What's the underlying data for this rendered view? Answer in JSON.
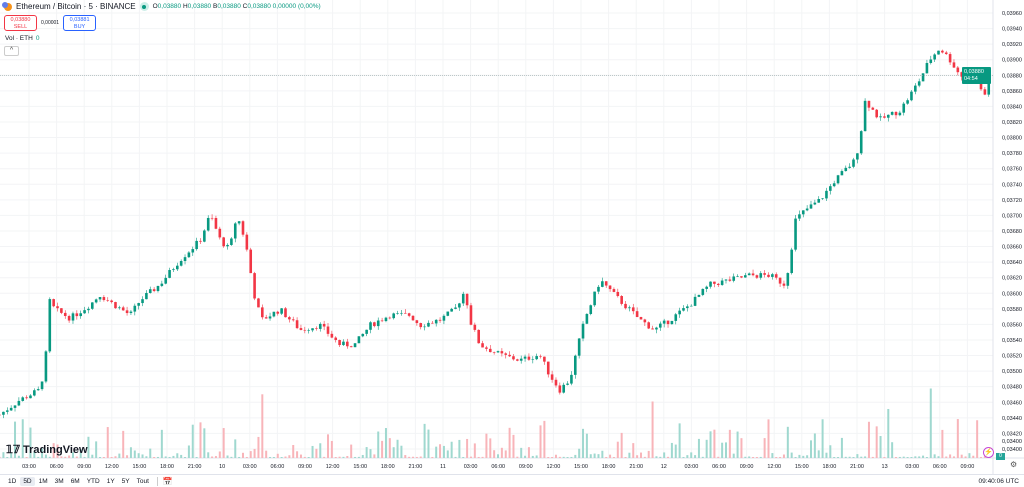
{
  "header": {
    "symbol": "Ethereum / Bitcoin · 5 · BINANCE",
    "ohlc": [
      {
        "k": "O",
        "v": "0,03880"
      },
      {
        "k": "H",
        "v": "0,03880"
      },
      {
        "k": "B",
        "v": "0,03880"
      },
      {
        "k": "C",
        "v": "0,03880"
      }
    ],
    "change": "0,00000 (0,00%)"
  },
  "trade": {
    "sell_price": "0,03880",
    "sell_label": "SELL",
    "spread": "0,00001",
    "buy_price": "0,03881",
    "buy_label": "BUY"
  },
  "volume_legend": {
    "label": "Vol · ETH",
    "value": "0"
  },
  "collapse_icon": "^",
  "logo": "TradingView",
  "current_price": {
    "value": "0,03880",
    "countdown": "04:54"
  },
  "volume_axis_label": "0,03400",
  "volume_badge": "0",
  "ranges": [
    "1D",
    "5D",
    "1M",
    "3M",
    "6M",
    "YTD",
    "1Y",
    "5Y",
    "Tout"
  ],
  "active_range": "5D",
  "clock": "09:40:06 UTC",
  "colors": {
    "up": "#089981",
    "down": "#f23645",
    "up_vol": "#9fd8cf",
    "down_vol": "#f8b4b9"
  },
  "chart_data": {
    "type": "candlestick",
    "title": "Ethereum / Bitcoin · 5 · BINANCE",
    "ylim": [
      0.0339,
      0.0397
    ],
    "y_ticks": [
      "0,03960",
      "0,03940",
      "0,03920",
      "0,03900",
      "0,03880",
      "0,03860",
      "0,03840",
      "0,03820",
      "0,03800",
      "0,03780",
      "0,03760",
      "0,03740",
      "0,03720",
      "0,03700",
      "0,03680",
      "0,03660",
      "0,03640",
      "0,03620",
      "0,03600",
      "0,03580",
      "0,03560",
      "0,03540",
      "0,03520",
      "0,03500",
      "0,03480",
      "0,03460",
      "0,03440",
      "0,03420",
      "0,03400"
    ],
    "x_ticks": [
      {
        "t": 3,
        "label": "03:00"
      },
      {
        "t": 6,
        "label": "06:00"
      },
      {
        "t": 9,
        "label": "09:00"
      },
      {
        "t": 12,
        "label": "12:00"
      },
      {
        "t": 15,
        "label": "15:00"
      },
      {
        "t": 18,
        "label": "18:00"
      },
      {
        "t": 21,
        "label": "21:00"
      },
      {
        "t": 24,
        "label": "10"
      },
      {
        "t": 27,
        "label": "03:00"
      },
      {
        "t": 30,
        "label": "06:00"
      },
      {
        "t": 33,
        "label": "09:00"
      },
      {
        "t": 36,
        "label": "12:00"
      },
      {
        "t": 39,
        "label": "15:00"
      },
      {
        "t": 42,
        "label": "18:00"
      },
      {
        "t": 45,
        "label": "21:00"
      },
      {
        "t": 48,
        "label": "11"
      },
      {
        "t": 51,
        "label": "03:00"
      },
      {
        "t": 54,
        "label": "06:00"
      },
      {
        "t": 57,
        "label": "09:00"
      },
      {
        "t": 60,
        "label": "12:00"
      },
      {
        "t": 63,
        "label": "15:00"
      },
      {
        "t": 66,
        "label": "18:00"
      },
      {
        "t": 69,
        "label": "21:00"
      },
      {
        "t": 72,
        "label": "12"
      },
      {
        "t": 75,
        "label": "03:00"
      },
      {
        "t": 78,
        "label": "06:00"
      },
      {
        "t": 81,
        "label": "09:00"
      },
      {
        "t": 84,
        "label": "12:00"
      },
      {
        "t": 87,
        "label": "15:00"
      },
      {
        "t": 90,
        "label": "18:00"
      },
      {
        "t": 93,
        "label": "21:00"
      },
      {
        "t": 96,
        "label": "13"
      },
      {
        "t": 99,
        "label": "03:00"
      },
      {
        "t": 102,
        "label": "06:00"
      },
      {
        "t": 105,
        "label": "09:00"
      }
    ],
    "x_unit": "hours since 9th 00:00 UTC",
    "price_path": [
      [
        -0.2,
        0.03444
      ],
      [
        2.0,
        0.03463
      ],
      [
        4.2,
        0.03476
      ],
      [
        4.8,
        0.03514
      ],
      [
        5.2,
        0.03591
      ],
      [
        5.8,
        0.03579
      ],
      [
        7.5,
        0.03568
      ],
      [
        9.6,
        0.03585
      ],
      [
        10.7,
        0.03598
      ],
      [
        12.3,
        0.03585
      ],
      [
        14.0,
        0.03572
      ],
      [
        15.1,
        0.03591
      ],
      [
        17.2,
        0.03611
      ],
      [
        19.4,
        0.03643
      ],
      [
        21.6,
        0.03668
      ],
      [
        22.7,
        0.03701
      ],
      [
        23.8,
        0.03668
      ],
      [
        24.8,
        0.03656
      ],
      [
        25.6,
        0.03701
      ],
      [
        26.5,
        0.03668
      ],
      [
        27.6,
        0.03591
      ],
      [
        28.3,
        0.03566
      ],
      [
        30.3,
        0.03579
      ],
      [
        32.5,
        0.03553
      ],
      [
        34.6,
        0.03559
      ],
      [
        36.8,
        0.03534
      ],
      [
        38.4,
        0.03534
      ],
      [
        40.1,
        0.03559
      ],
      [
        42.2,
        0.03572
      ],
      [
        44.4,
        0.03572
      ],
      [
        45.5,
        0.03559
      ],
      [
        47.7,
        0.03566
      ],
      [
        49.3,
        0.03579
      ],
      [
        50.4,
        0.03604
      ],
      [
        50.9,
        0.03566
      ],
      [
        52.0,
        0.03534
      ],
      [
        54.2,
        0.03521
      ],
      [
        56.4,
        0.03514
      ],
      [
        58.5,
        0.03521
      ],
      [
        59.6,
        0.03495
      ],
      [
        60.7,
        0.03476
      ],
      [
        61.8,
        0.03489
      ],
      [
        62.7,
        0.03534
      ],
      [
        63.4,
        0.03566
      ],
      [
        65.1,
        0.03617
      ],
      [
        67.2,
        0.03591
      ],
      [
        69.4,
        0.03566
      ],
      [
        71.0,
        0.03553
      ],
      [
        72.7,
        0.03566
      ],
      [
        74.8,
        0.03585
      ],
      [
        77.0,
        0.03611
      ],
      [
        79.2,
        0.03617
      ],
      [
        81.4,
        0.03623
      ],
      [
        83.5,
        0.03623
      ],
      [
        85.2,
        0.03611
      ],
      [
        85.7,
        0.03643
      ],
      [
        86.3,
        0.03694
      ],
      [
        87.4,
        0.03707
      ],
      [
        89.0,
        0.0372
      ],
      [
        90.6,
        0.03745
      ],
      [
        91.7,
        0.03758
      ],
      [
        92.8,
        0.03771
      ],
      [
        93.3,
        0.03797
      ],
      [
        93.9,
        0.03848
      ],
      [
        95.5,
        0.03823
      ],
      [
        97.7,
        0.03835
      ],
      [
        98.8,
        0.03855
      ],
      [
        99.8,
        0.03874
      ],
      [
        100.9,
        0.039
      ],
      [
        102.0,
        0.03915
      ],
      [
        103.1,
        0.039
      ],
      [
        104.2,
        0.0388
      ],
      [
        105.8,
        0.03874
      ],
      [
        106.9,
        0.03855
      ],
      [
        107.5,
        0.0388
      ]
    ],
    "last_price": 0.0388
  }
}
